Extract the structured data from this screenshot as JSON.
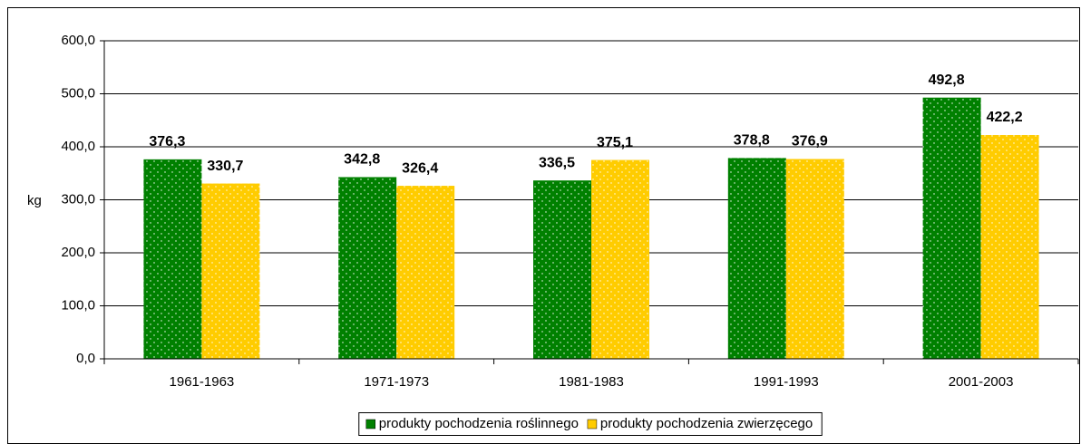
{
  "chart_data": {
    "type": "bar",
    "y_label": "kg",
    "categories": [
      "1961-1963",
      "1971-1973",
      "1981-1983",
      "1991-1993",
      "2001-2003"
    ],
    "series": [
      {
        "name": "produkty pochodzenia roślinnego",
        "color": "#008000",
        "values": [
          376.3,
          342.8,
          336.5,
          378.8,
          492.8
        ],
        "value_labels": [
          "376,3",
          "342,8",
          "336,5",
          "378,8",
          "492,8"
        ]
      },
      {
        "name": "produkty pochodzenia zwierzęcego",
        "color": "#ffcc00",
        "values": [
          330.7,
          326.4,
          375.1,
          376.9,
          422.2
        ],
        "value_labels": [
          "330,7",
          "326,4",
          "375,1",
          "376,9",
          "422,2"
        ]
      }
    ],
    "ylim": [
      0,
      600
    ],
    "yticks": [
      {
        "value": 0,
        "label": "0,0"
      },
      {
        "value": 100,
        "label": "100,0"
      },
      {
        "value": 200,
        "label": "200,0"
      },
      {
        "value": 300,
        "label": "300,0"
      },
      {
        "value": 400,
        "label": "400,0"
      },
      {
        "value": 500,
        "label": "500,0"
      },
      {
        "value": 600,
        "label": "600,0"
      }
    ],
    "grid": true,
    "legend": "bottom"
  }
}
